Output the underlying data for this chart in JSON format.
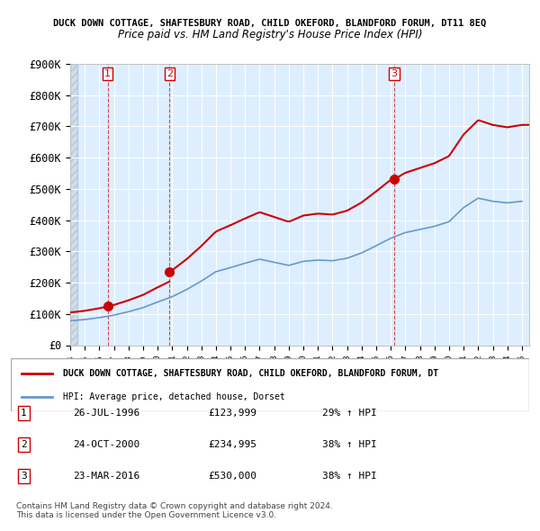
{
  "title_line1": "UCK DOWN COTTAGE, SHAFTESBURY ROAD, CHILD OKEFORD, BLANDFORD FORUM, DT11 8E",
  "title_line1_full": "DUCK DOWN COTTAGE, SHAFTESBURY ROAD, CHILD OKEFORD, BLANDFORD FORUM, DT11 8EQ",
  "title_line2": "Price paid vs. HM Land Registry's House Price Index (HPI)",
  "ylabel": "",
  "ylim": [
    0,
    900000
  ],
  "yticks": [
    0,
    100000,
    200000,
    300000,
    400000,
    500000,
    600000,
    700000,
    800000,
    900000
  ],
  "ytick_labels": [
    "£0",
    "£100K",
    "£200K",
    "£300K",
    "£400K",
    "£500K",
    "£600K",
    "£700K",
    "£800K",
    "£900K"
  ],
  "background_color": "#ffffff",
  "plot_bg_color": "#ddeeff",
  "hatch_color": "#c8d8e8",
  "grid_color": "#ffffff",
  "property_color": "#cc0000",
  "hpi_color": "#6699cc",
  "sale_marker_color": "#cc0000",
  "sales": [
    {
      "date_num": 1996.57,
      "price": 123999,
      "label": "1"
    },
    {
      "date_num": 2000.82,
      "price": 234995,
      "label": "2"
    },
    {
      "date_num": 2016.23,
      "price": 530000,
      "label": "3"
    }
  ],
  "legend_property_label": "DUCK DOWN COTTAGE, SHAFTESBURY ROAD, CHILD OKEFORD, BLANDFORD FORUM, DT",
  "legend_hpi_label": "HPI: Average price, detached house, Dorset",
  "table_rows": [
    {
      "num": "1",
      "date": "26-JUL-1996",
      "price": "£123,999",
      "change": "29% ↑ HPI"
    },
    {
      "num": "2",
      "date": "24-OCT-2000",
      "price": "£234,995",
      "change": "38% ↑ HPI"
    },
    {
      "num": "3",
      "date": "23-MAR-2016",
      "price": "£530,000",
      "change": "38% ↑ HPI"
    }
  ],
  "footer_line1": "Contains HM Land Registry data © Crown copyright and database right 2024.",
  "footer_line2": "This data is licensed under the Open Government Licence v3.0.",
  "xlim_start": 1994.0,
  "xlim_end": 2025.5
}
